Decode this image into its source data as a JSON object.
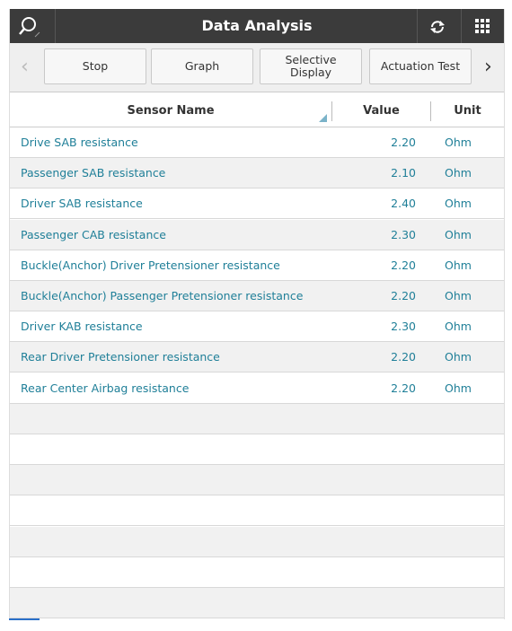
{
  "header": {
    "title": "Data Analysis"
  },
  "toolbar": {
    "buttons": [
      "Stop",
      "Graph",
      "Selective Display",
      "Actuation Test"
    ]
  },
  "table": {
    "columns": [
      "Sensor Name",
      "Value",
      "Unit"
    ],
    "rows": [
      [
        "Drive SAB resistance",
        "2.20",
        "Ohm"
      ],
      [
        "Passenger SAB resistance",
        "2.10",
        "Ohm"
      ],
      [
        "Driver SAB resistance",
        "2.40",
        "Ohm"
      ],
      [
        "Passenger CAB resistance",
        "2.30",
        "Ohm"
      ],
      [
        "Buckle(Anchor) Driver Pretensioner resistance",
        "2.20",
        "Ohm"
      ],
      [
        "Buckle(Anchor) Passenger Pretensioner resistance",
        "2.20",
        "Ohm"
      ],
      [
        "Driver KAB resistance",
        "2.30",
        "Ohm"
      ],
      [
        "Rear Driver Pretensioner resistance",
        "2.20",
        "Ohm"
      ],
      [
        "Rear Center Airbag resistance",
        "2.20",
        "Ohm"
      ]
    ]
  }
}
